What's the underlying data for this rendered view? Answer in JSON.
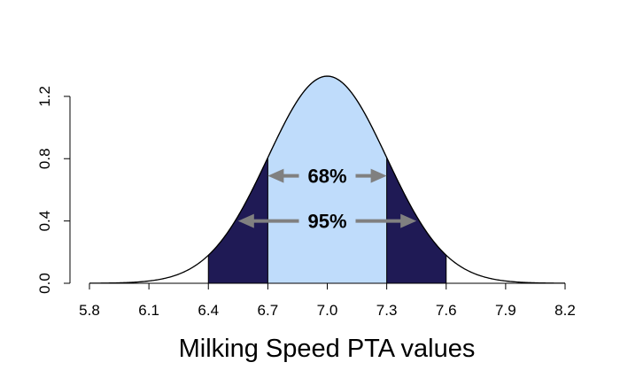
{
  "chart_data": {
    "type": "area",
    "xlabel": "Milking Speed PTA values",
    "ylabel": "",
    "xlim": [
      5.8,
      8.2
    ],
    "ylim": [
      0,
      1.33
    ],
    "x_ticks": [
      "5.8",
      "6.1",
      "6.4",
      "6.7",
      "7.0",
      "7.3",
      "7.6",
      "7.9",
      "8.2"
    ],
    "y_ticks": [
      "0.0",
      "0.4",
      "0.8",
      "1.2"
    ],
    "distribution": {
      "mean": 7.0,
      "sd": 0.3
    },
    "series": [
      {
        "name": "95%",
        "range": [
          6.4,
          7.6
        ],
        "color": "#1f1a55"
      },
      {
        "name": "68%",
        "range": [
          6.7,
          7.3
        ],
        "color": "#bfdcfb"
      }
    ],
    "annotations": [
      {
        "label": "68%",
        "from": 6.7,
        "to": 7.3,
        "y": 0.69
      },
      {
        "label": "95%",
        "from": 6.55,
        "to": 7.45,
        "y": 0.4
      }
    ],
    "arrow_color": "#808080",
    "grid": false,
    "legend": "none"
  }
}
